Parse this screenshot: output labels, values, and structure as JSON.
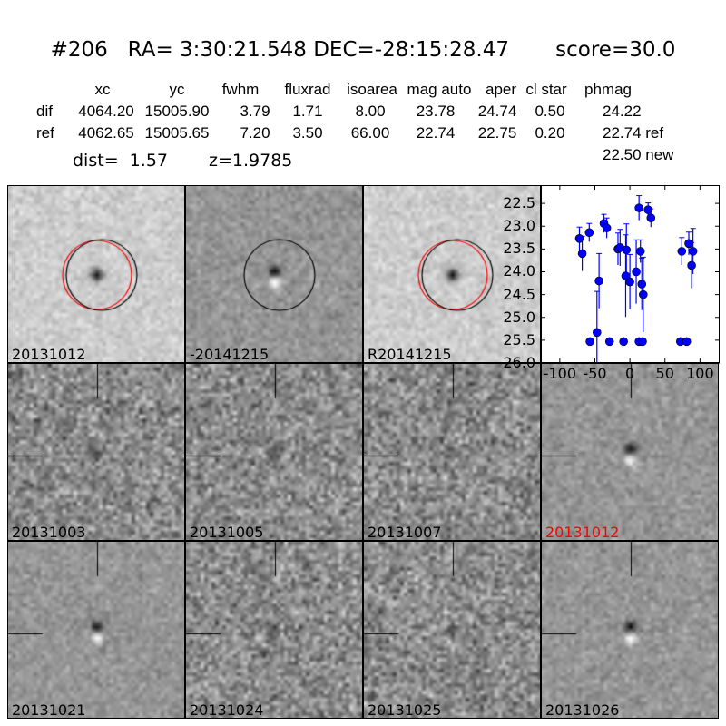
{
  "title": "#206   RA= 3:30:21.548 DEC=-28:15:28.47       score=30.0",
  "table": {
    "headers": [
      "xc",
      "yc",
      "fwhm",
      "fluxrad",
      "isoarea",
      "mag auto",
      "aper",
      "cl star",
      "phmag"
    ],
    "rows": [
      {
        "name": "dif",
        "values": [
          "4064.20",
          "15005.90",
          "3.79",
          "1.71",
          "8.00",
          "23.78",
          "24.74",
          "0.50",
          "24.22"
        ]
      },
      {
        "name": "ref",
        "values": [
          "4062.65",
          "15005.65",
          "7.20",
          "3.50",
          "66.00",
          "22.74",
          "22.75",
          "0.20",
          "22.74 ref"
        ]
      }
    ],
    "extra_phmag": "22.50 new",
    "dist": "dist=  1.57",
    "z": "z=1.9785"
  },
  "stamps": [
    {
      "label": "20131012",
      "color": "#000000",
      "style": "ref",
      "circles": [
        "red",
        "black"
      ]
    },
    {
      "label": "-20141215",
      "color": "#000000",
      "style": "diff",
      "circles": [
        "black"
      ]
    },
    {
      "label": "R20141215",
      "color": "#000000",
      "style": "ref",
      "circles": [
        "red",
        "black"
      ]
    },
    {
      "label": "20131003",
      "color": "#000000",
      "style": "noisy"
    },
    {
      "label": "20131005",
      "color": "#000000",
      "style": "noisy"
    },
    {
      "label": "20131007",
      "color": "#000000",
      "style": "noisy"
    },
    {
      "label": "20131012",
      "color": "#ff0000",
      "style": "diff"
    },
    {
      "label": "20131021",
      "color": "#000000",
      "style": "diff"
    },
    {
      "label": "20131024",
      "color": "#000000",
      "style": "noisy"
    },
    {
      "label": "20131025",
      "color": "#000000",
      "style": "noisy"
    },
    {
      "label": "20131026",
      "color": "#000000",
      "style": "diff"
    }
  ],
  "chart_data": {
    "type": "scatter",
    "title": "",
    "xlabel": "",
    "ylabel": "",
    "xlim": [
      -127,
      128
    ],
    "ylim": [
      26.0,
      22.1
    ],
    "y_inverted": true,
    "xticks": [
      "-100",
      "-50",
      "0",
      "50",
      "100"
    ],
    "xtick_values": [
      -100,
      -50,
      0,
      50,
      100
    ],
    "yticks": [
      "22.5",
      "23.0",
      "23.5",
      "24.0",
      "24.5",
      "25.0",
      "25.5",
      "26.0"
    ],
    "ytick_values": [
      22.5,
      23.0,
      23.5,
      24.0,
      24.5,
      25.0,
      25.5,
      26.0
    ],
    "marker_color": "#0000ff",
    "points": [
      {
        "x": -72,
        "y": 23.27,
        "err": 0.25
      },
      {
        "x": -68,
        "y": 23.6,
        "err": 0.38
      },
      {
        "x": -58,
        "y": 23.14,
        "err": 0.2
      },
      {
        "x": -37,
        "y": 22.94,
        "err": 0.2
      },
      {
        "x": -33,
        "y": 23.04,
        "err": 0.22
      },
      {
        "x": -44,
        "y": 24.2,
        "err": 0.6
      },
      {
        "x": -47,
        "y": 25.33,
        "err": 0.9
      },
      {
        "x": -57,
        "y": 25.53,
        "err": 0.05
      },
      {
        "x": -29,
        "y": 25.53,
        "err": 0.05
      },
      {
        "x": -17,
        "y": 23.5,
        "err": 0.35
      },
      {
        "x": -14,
        "y": 23.47,
        "err": 0.4
      },
      {
        "x": -5,
        "y": 23.52,
        "err": 0.57
      },
      {
        "x": -6,
        "y": 24.09,
        "err": 0.9
      },
      {
        "x": 0,
        "y": 24.22,
        "err": 0.6
      },
      {
        "x": -9,
        "y": 25.53,
        "err": 0.05
      },
      {
        "x": 9,
        "y": 24.0,
        "err": 0.7
      },
      {
        "x": 13,
        "y": 22.6,
        "err": 0.27
      },
      {
        "x": 15,
        "y": 23.55,
        "err": 0.25
      },
      {
        "x": 17,
        "y": 24.27,
        "err": 0.57
      },
      {
        "x": 19,
        "y": 24.5,
        "err": 0.82
      },
      {
        "x": 13,
        "y": 25.53,
        "err": 0.05
      },
      {
        "x": 18,
        "y": 25.53,
        "err": 0.05
      },
      {
        "x": 26,
        "y": 22.64,
        "err": 0.15
      },
      {
        "x": 30,
        "y": 22.82,
        "err": 0.2
      },
      {
        "x": 74,
        "y": 23.55,
        "err": 0.3
      },
      {
        "x": 84,
        "y": 23.38,
        "err": 0.25
      },
      {
        "x": 88,
        "y": 23.86,
        "err": 0.5
      },
      {
        "x": 90,
        "y": 23.55,
        "err": 0.5
      },
      {
        "x": 72,
        "y": 25.53,
        "err": 0.05
      },
      {
        "x": 81,
        "y": 25.53,
        "err": 0.05
      }
    ]
  }
}
